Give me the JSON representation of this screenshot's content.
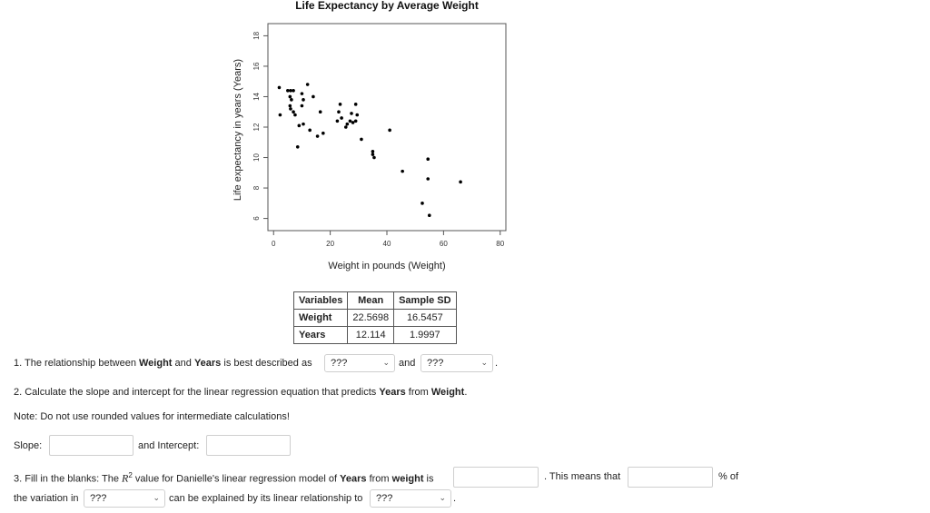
{
  "chart_data": {
    "type": "scatter",
    "title": "Life Expectancy by Average Weight",
    "xlabel": "Weight in pounds (Weight)",
    "ylabel": "Life expectancy in years (Years)",
    "xlim": [
      -2,
      82
    ],
    "ylim": [
      5.2,
      18.8
    ],
    "xticks": [
      0,
      20,
      40,
      60,
      80
    ],
    "yticks": [
      6,
      8,
      10,
      12,
      14,
      16,
      18
    ],
    "points": [
      [
        2,
        14.6
      ],
      [
        2.3,
        12.8
      ],
      [
        5,
        14.4
      ],
      [
        5.8,
        14.0
      ],
      [
        6.3,
        13.8
      ],
      [
        6,
        14.4
      ],
      [
        5.8,
        13.4
      ],
      [
        6,
        13.2
      ],
      [
        7,
        14.4
      ],
      [
        7,
        13.0
      ],
      [
        7.6,
        12.8
      ],
      [
        8.5,
        10.7
      ],
      [
        9,
        12.1
      ],
      [
        10,
        14.2
      ],
      [
        10.5,
        13.8
      ],
      [
        10,
        13.4
      ],
      [
        10.5,
        12.2
      ],
      [
        12,
        14.8
      ],
      [
        12.8,
        11.8
      ],
      [
        14,
        14.0
      ],
      [
        15.5,
        11.4
      ],
      [
        16.5,
        13.0
      ],
      [
        17.5,
        11.6
      ],
      [
        22.5,
        12.4
      ],
      [
        23,
        13.0
      ],
      [
        23.5,
        13.5
      ],
      [
        24,
        12.6
      ],
      [
        25.5,
        12.0
      ],
      [
        26,
        12.2
      ],
      [
        27,
        12.4
      ],
      [
        27.5,
        12.9
      ],
      [
        28,
        12.3
      ],
      [
        29,
        13.5
      ],
      [
        29,
        12.4
      ],
      [
        29.5,
        12.8
      ],
      [
        31,
        11.2
      ],
      [
        35,
        10.4
      ],
      [
        35,
        10.2
      ],
      [
        35.5,
        10.0
      ],
      [
        41,
        11.8
      ],
      [
        45.5,
        9.1
      ],
      [
        52.5,
        7.0
      ],
      [
        54.5,
        9.9
      ],
      [
        54.5,
        8.6
      ],
      [
        55,
        6.2
      ],
      [
        66,
        8.4
      ]
    ]
  },
  "stats_table": {
    "headers": [
      "Variables",
      "Mean",
      "Sample SD"
    ],
    "rows": [
      {
        "variable": "Weight",
        "mean": "22.5698",
        "sd": "16.5457"
      },
      {
        "variable": "Years",
        "mean": "12.114",
        "sd": "1.9997"
      }
    ]
  },
  "q1": {
    "prefix": "1. The relationship between ",
    "var1": "Weight",
    "and_text": " and ",
    "var2": "Years",
    "suffix": " is best described as",
    "select1": "???",
    "connector": "and",
    "select2": "???",
    "end": "."
  },
  "q2": {
    "prefix": "2. Calculate the slope and intercept for the linear regression equation that predicts ",
    "var1": "Years",
    "from_text": " from ",
    "var2": "Weight",
    "end": "."
  },
  "note": "Note: Do not use rounded values for intermediate calculations!",
  "slope": {
    "label": "Slope:",
    "value": ""
  },
  "intercept": {
    "label": "and Intercept:",
    "value": ""
  },
  "q3": {
    "prefix": "3. Fill in the blanks: The ",
    "r": "R",
    "sup": "2",
    "mid": " value for Danielle's linear regression model of ",
    "var1": "Years",
    "from_text": " from ",
    "var2": "weight",
    "is_text": " is",
    "means": ". This means that",
    "pct": "% of",
    "line2_prefix": "the variation in",
    "select1": "???",
    "explained": "can be explained by its linear relationship to",
    "select2": "???",
    "end": "."
  }
}
